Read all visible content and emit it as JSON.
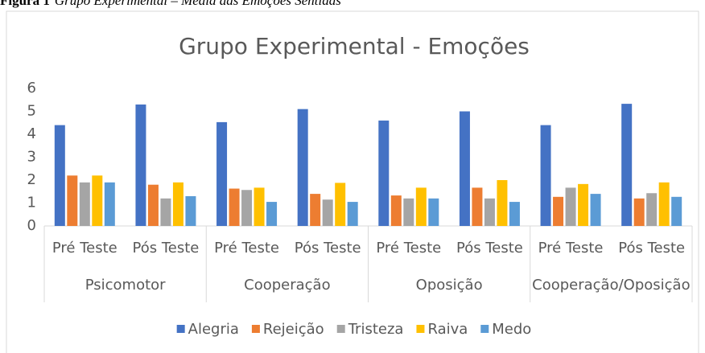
{
  "caption": {
    "label": "Figura 1",
    "text": "Grupo Experimental – Média das Emoções Sentidas"
  },
  "chart_data": {
    "type": "bar",
    "title": "Grupo Experimental - Emoções",
    "categories": [
      "Pré Teste",
      "Pós Teste",
      "Pré Teste",
      "Pós Teste",
      "Pré Teste",
      "Pós Teste",
      "Pré Teste",
      "Pós Teste"
    ],
    "groups": [
      "Psicomotor",
      "Cooperação",
      "Oposição",
      "Cooperação/Oposição"
    ],
    "series": [
      {
        "name": "Alegria",
        "color": "#4472c4",
        "values": [
          4.4,
          5.3,
          4.53,
          5.1,
          4.6,
          5.0,
          4.4,
          5.33
        ]
      },
      {
        "name": "Rejeição",
        "color": "#ed7d31",
        "values": [
          2.2,
          1.8,
          1.63,
          1.4,
          1.33,
          1.67,
          1.27,
          1.2
        ]
      },
      {
        "name": "Tristeza",
        "color": "#a5a5a5",
        "values": [
          1.9,
          1.2,
          1.57,
          1.15,
          1.2,
          1.2,
          1.67,
          1.43
        ]
      },
      {
        "name": "Raiva",
        "color": "#ffc000",
        "values": [
          2.2,
          1.9,
          1.67,
          1.88,
          1.67,
          2.0,
          1.83,
          1.9
        ]
      },
      {
        "name": "Medo",
        "color": "#5b9bd5",
        "values": [
          1.9,
          1.3,
          1.05,
          1.05,
          1.2,
          1.05,
          1.4,
          1.27
        ]
      }
    ],
    "ylim": [
      0,
      6
    ],
    "yticks": [
      0,
      1,
      2,
      3,
      4,
      5,
      6
    ],
    "grid": false,
    "legend": "bottom"
  }
}
